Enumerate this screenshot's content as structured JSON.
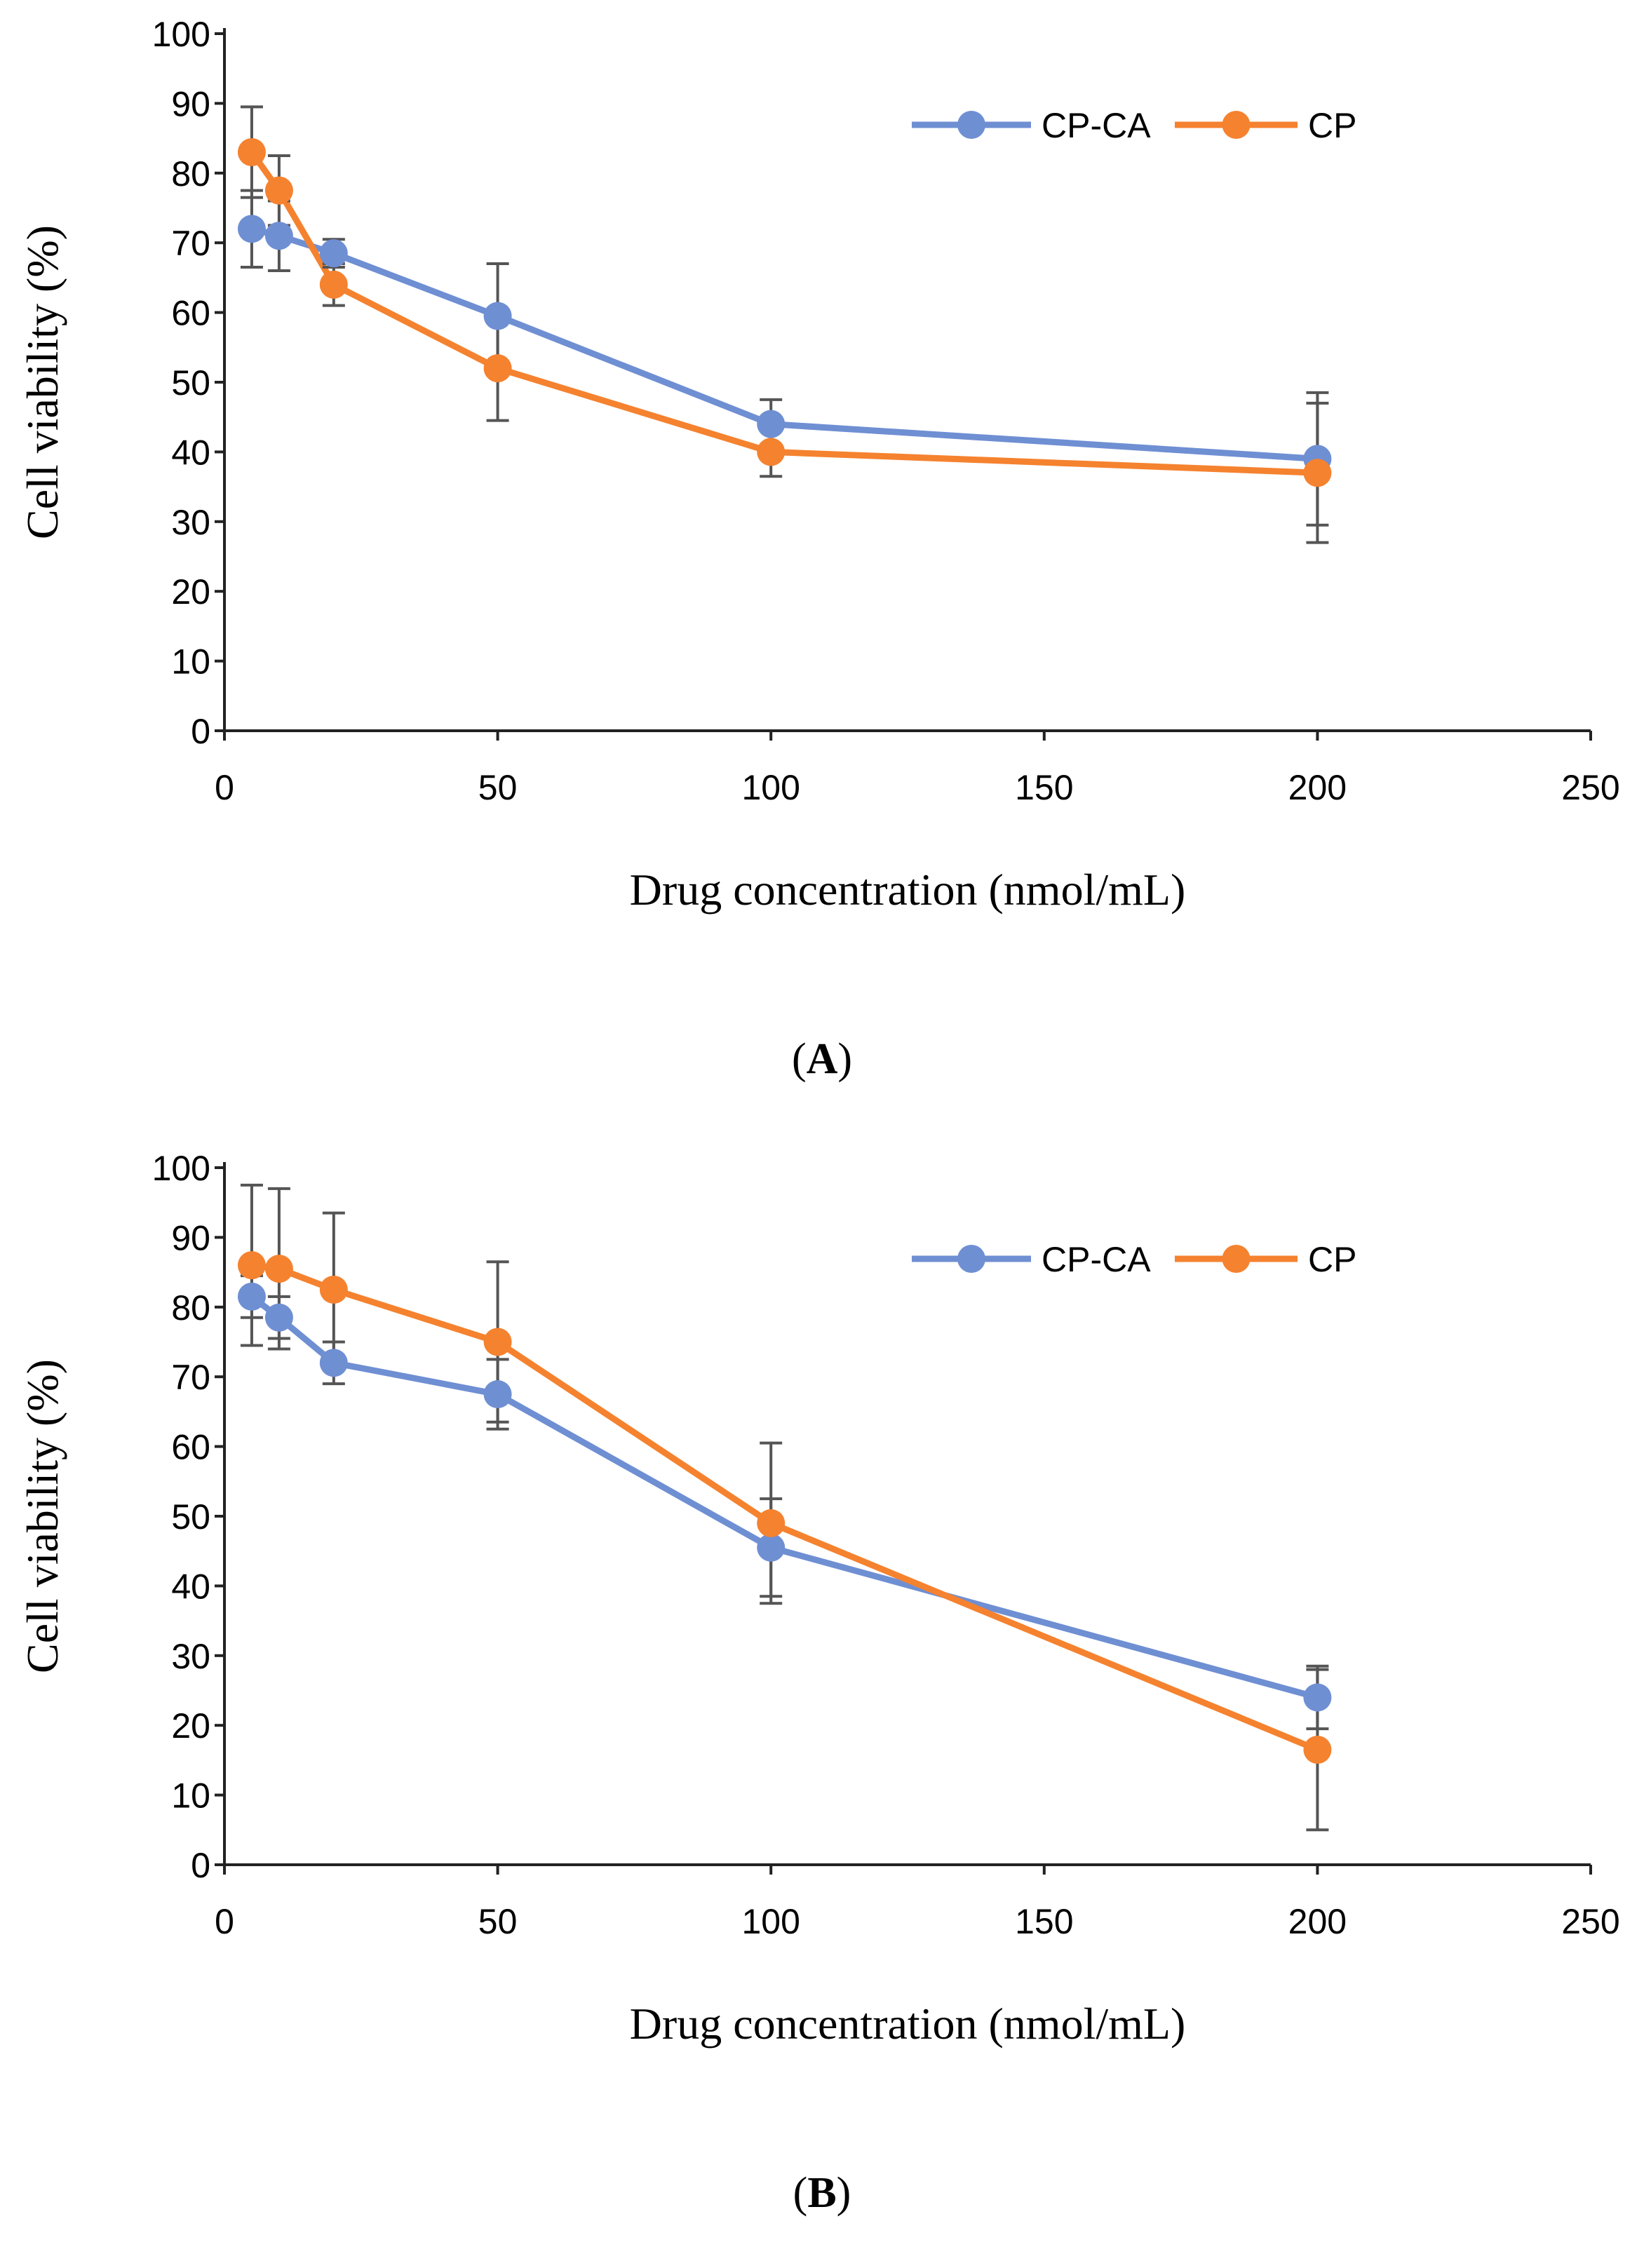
{
  "chart_data": [
    {
      "type": "line",
      "panel_label": "A",
      "xlabel": "Drug concentration (nmol/mL)",
      "ylabel": "Cell viability (%)",
      "xlim": [
        0,
        250
      ],
      "ylim": [
        0,
        100
      ],
      "x_ticks": [
        0,
        50,
        100,
        150,
        200,
        250
      ],
      "y_ticks": [
        0,
        10,
        20,
        30,
        40,
        50,
        60,
        70,
        80,
        90,
        100
      ],
      "grid": false,
      "legend_position": "top-right",
      "series": [
        {
          "name": "CP-CA",
          "color": "#6F8FD3",
          "x": [
            5,
            10,
            20,
            50,
            100,
            200
          ],
          "y": [
            72,
            71,
            68.5,
            59.5,
            44,
            39
          ],
          "err": [
            5.5,
            5,
            2,
            7.5,
            3.5,
            9.5
          ]
        },
        {
          "name": "CP",
          "color": "#F5822F",
          "x": [
            5,
            10,
            20,
            50,
            100,
            200
          ],
          "y": [
            83,
            77.5,
            64,
            52,
            40,
            37
          ],
          "err": [
            6.5,
            5,
            3,
            7.5,
            3.5,
            10
          ]
        }
      ]
    },
    {
      "type": "line",
      "panel_label": "B",
      "xlabel": "Drug concentration (nmol/mL)",
      "ylabel": "Cell viability (%)",
      "xlim": [
        0,
        250
      ],
      "ylim": [
        0,
        100
      ],
      "x_ticks": [
        0,
        50,
        100,
        150,
        200,
        250
      ],
      "y_ticks": [
        0,
        10,
        20,
        30,
        40,
        50,
        60,
        70,
        80,
        90,
        100
      ],
      "grid": false,
      "legend_position": "top-right",
      "series": [
        {
          "name": "CP-CA",
          "color": "#6F8FD3",
          "x": [
            5,
            10,
            20,
            50,
            100,
            200
          ],
          "y": [
            81.5,
            78.5,
            72,
            67.5,
            45.5,
            24
          ],
          "err": [
            3,
            3,
            3,
            5,
            7,
            4.5
          ]
        },
        {
          "name": "CP",
          "color": "#F5822F",
          "x": [
            5,
            10,
            20,
            50,
            100,
            200
          ],
          "y": [
            86,
            85.5,
            82.5,
            75,
            49,
            16.5
          ],
          "err": [
            11.5,
            11.5,
            11,
            11.5,
            11.5,
            11.5
          ]
        }
      ]
    }
  ]
}
